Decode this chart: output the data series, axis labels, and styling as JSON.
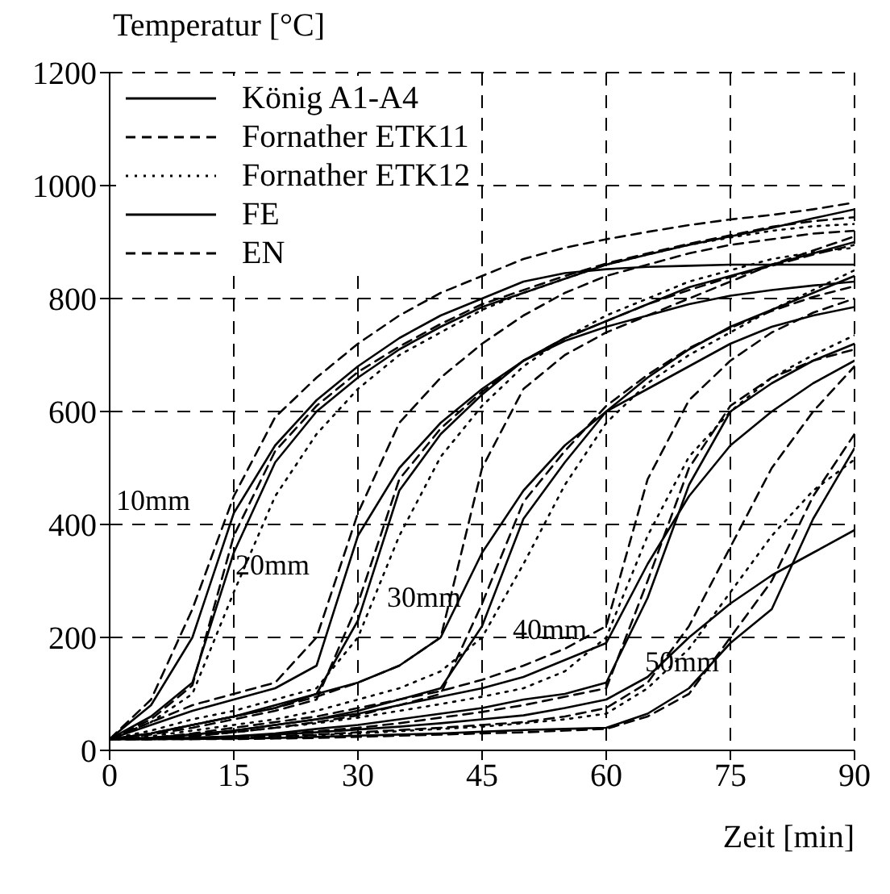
{
  "chart_data": {
    "type": "line",
    "ylabel": "Temperatur [°C]",
    "xlabel": "Zeit [min]",
    "x": [
      0,
      5,
      10,
      15,
      20,
      25,
      30,
      35,
      40,
      45,
      50,
      55,
      60,
      65,
      70,
      75,
      80,
      85,
      90
    ],
    "xlim": [
      0,
      90
    ],
    "xticks": [
      0,
      15,
      30,
      45,
      60,
      75,
      90
    ],
    "ylim": [
      0,
      1200
    ],
    "yticks": [
      0,
      200,
      400,
      600,
      800,
      1000,
      1200
    ],
    "grid": true,
    "legend": "top left",
    "marker": "none",
    "annotations": [
      "10mm",
      "20mm",
      "30mm",
      "40mm",
      "50mm"
    ],
    "series": [
      {
        "name": "König A1-A4",
        "color": "#000000",
        "line_style": "solid",
        "values": [
          20,
          80,
          200,
          420,
          540,
          620,
          680,
          730,
          770,
          800,
          830,
          845,
          852,
          856,
          858,
          860,
          860,
          860,
          860
        ]
      },
      {
        "name": "Fornather ETK11",
        "color": "#000000",
        "line_style": "dashed",
        "values": [
          20,
          90,
          250,
          450,
          590,
          660,
          720,
          770,
          810,
          840,
          870,
          890,
          905,
          918,
          930,
          940,
          948,
          958,
          970
        ]
      },
      {
        "name": "Fornather ETK12",
        "color": "#000000",
        "line_style": "dotted",
        "values": [
          20,
          50,
          100,
          280,
          450,
          560,
          640,
          700,
          740,
          780,
          810,
          835,
          860,
          878,
          895,
          908,
          920,
          928,
          932
        ]
      },
      {
        "name": "FE",
        "color": "#000000",
        "line_style": "solid",
        "values": [
          20,
          60,
          120,
          350,
          510,
          600,
          660,
          710,
          750,
          785,
          810,
          835,
          860,
          878,
          895,
          910,
          925,
          942,
          958
        ]
      },
      {
        "name": "EN",
        "color": "#000000",
        "line_style": "dashed",
        "values": [
          20,
          55,
          115,
          380,
          530,
          610,
          670,
          715,
          755,
          790,
          815,
          840,
          862,
          880,
          897,
          912,
          927,
          937,
          944
        ]
      },
      {
        "color": "#000000",
        "line_style": "solid",
        "values": [
          20,
          45,
          70,
          90,
          110,
          150,
          380,
          500,
          580,
          640,
          690,
          725,
          750,
          770,
          790,
          805,
          815,
          823,
          830
        ]
      },
      {
        "color": "#000000",
        "line_style": "dashed",
        "values": [
          20,
          50,
          80,
          100,
          120,
          200,
          420,
          580,
          660,
          720,
          770,
          810,
          840,
          860,
          880,
          895,
          905,
          915,
          920
        ]
      },
      {
        "color": "#000000",
        "line_style": "dotted",
        "values": [
          20,
          35,
          55,
          70,
          90,
          110,
          200,
          380,
          520,
          610,
          680,
          730,
          770,
          800,
          830,
          850,
          870,
          882,
          890
        ]
      },
      {
        "color": "#000000",
        "line_style": "solid",
        "values": [
          20,
          30,
          45,
          60,
          75,
          100,
          230,
          460,
          560,
          630,
          690,
          730,
          760,
          790,
          820,
          840,
          860,
          880,
          900
        ]
      },
      {
        "color": "#000000",
        "line_style": "dashed",
        "values": [
          20,
          28,
          40,
          55,
          70,
          90,
          260,
          480,
          570,
          635,
          690,
          730,
          760,
          790,
          815,
          838,
          858,
          878,
          895
        ]
      },
      {
        "color": "#000000",
        "line_style": "solid",
        "values": [
          20,
          30,
          45,
          60,
          80,
          100,
          120,
          150,
          200,
          350,
          460,
          540,
          600,
          640,
          680,
          720,
          750,
          770,
          785
        ]
      },
      {
        "color": "#000000",
        "line_style": "dashed",
        "values": [
          20,
          30,
          45,
          60,
          75,
          95,
          120,
          150,
          200,
          500,
          640,
          700,
          740,
          770,
          800,
          830,
          860,
          885,
          910
        ]
      },
      {
        "color": "#000000",
        "line_style": "dotted",
        "values": [
          20,
          25,
          35,
          45,
          55,
          70,
          90,
          110,
          140,
          200,
          330,
          470,
          580,
          650,
          700,
          740,
          780,
          815,
          850
        ]
      },
      {
        "color": "#000000",
        "line_style": "solid",
        "values": [
          20,
          22,
          28,
          35,
          45,
          55,
          70,
          90,
          110,
          220,
          410,
          510,
          600,
          660,
          710,
          750,
          780,
          810,
          840
        ]
      },
      {
        "color": "#000000",
        "line_style": "dashed",
        "values": [
          20,
          20,
          25,
          32,
          40,
          50,
          62,
          80,
          100,
          260,
          440,
          530,
          610,
          665,
          712,
          748,
          778,
          803,
          822
        ]
      },
      {
        "color": "#000000",
        "line_style": "solid",
        "values": [
          20,
          22,
          28,
          35,
          45,
          55,
          65,
          80,
          95,
          110,
          130,
          160,
          190,
          330,
          450,
          540,
          600,
          650,
          690
        ]
      },
      {
        "color": "#000000",
        "line_style": "dashed",
        "values": [
          20,
          22,
          30,
          40,
          50,
          60,
          75,
          90,
          105,
          125,
          150,
          180,
          220,
          480,
          620,
          690,
          740,
          775,
          800
        ]
      },
      {
        "color": "#000000",
        "line_style": "dotted",
        "values": [
          20,
          20,
          25,
          32,
          40,
          48,
          58,
          70,
          82,
          95,
          110,
          140,
          200,
          380,
          520,
          600,
          660,
          700,
          735
        ]
      },
      {
        "color": "#000000",
        "line_style": "solid",
        "values": [
          20,
          20,
          22,
          25,
          30,
          38,
          45,
          55,
          65,
          75,
          90,
          100,
          120,
          270,
          470,
          600,
          650,
          690,
          720
        ]
      },
      {
        "color": "#000000",
        "line_style": "dashed",
        "values": [
          20,
          20,
          22,
          24,
          28,
          34,
          40,
          48,
          58,
          68,
          80,
          95,
          110,
          300,
          500,
          610,
          660,
          690,
          710
        ]
      },
      {
        "color": "#000000",
        "line_style": "solid",
        "values": [
          20,
          20,
          22,
          25,
          28,
          32,
          37,
          42,
          48,
          55,
          62,
          75,
          90,
          130,
          200,
          260,
          310,
          350,
          390
        ]
      },
      {
        "color": "#000000",
        "line_style": "dashed",
        "values": [
          20,
          20,
          21,
          23,
          25,
          28,
          32,
          36,
          40,
          45,
          50,
          60,
          75,
          120,
          220,
          360,
          500,
          600,
          680
        ]
      },
      {
        "color": "#000000",
        "line_style": "dotted",
        "values": [
          20,
          20,
          20,
          22,
          24,
          27,
          30,
          34,
          38,
          42,
          48,
          55,
          65,
          110,
          180,
          280,
          380,
          460,
          515
        ]
      },
      {
        "color": "#000000",
        "line_style": "solid",
        "values": [
          20,
          20,
          20,
          21,
          22,
          24,
          26,
          28,
          30,
          33,
          36,
          38,
          40,
          65,
          110,
          190,
          250,
          410,
          535
        ]
      },
      {
        "color": "#000000",
        "line_style": "dashed",
        "values": [
          20,
          20,
          20,
          20,
          21,
          22,
          24,
          26,
          28,
          30,
          32,
          35,
          38,
          60,
          100,
          200,
          300,
          450,
          560
        ]
      }
    ]
  }
}
